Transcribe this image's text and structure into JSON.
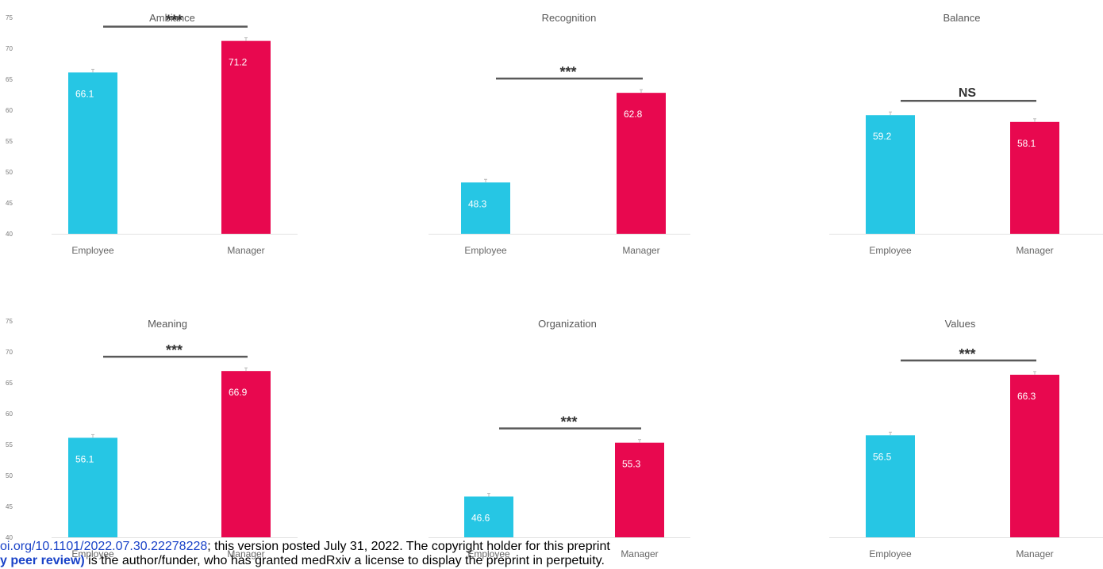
{
  "chart_data": [
    {
      "type": "bar",
      "title": "Ambiance",
      "categories": [
        "Employee",
        "Manager"
      ],
      "values": [
        66.1,
        71.2
      ],
      "significance": "***",
      "ylim": [
        40,
        75
      ],
      "yticks": [
        75,
        70,
        65,
        60,
        55,
        50,
        45,
        40
      ],
      "show_yaxis": true,
      "colors": [
        "#26c6e4",
        "#e8084f"
      ]
    },
    {
      "type": "bar",
      "title": "Recognition",
      "categories": [
        "Employee",
        "Manager"
      ],
      "values": [
        48.3,
        62.8
      ],
      "significance": "***",
      "ylim": [
        40,
        75
      ],
      "show_yaxis": false,
      "colors": [
        "#26c6e4",
        "#e8084f"
      ]
    },
    {
      "type": "bar",
      "title": "Balance",
      "categories": [
        "Employee",
        "Manager"
      ],
      "values": [
        59.2,
        58.1
      ],
      "significance": "NS",
      "ylim": [
        40,
        75
      ],
      "show_yaxis": false,
      "colors": [
        "#26c6e4",
        "#e8084f"
      ]
    },
    {
      "type": "bar",
      "title": "Meaning",
      "categories": [
        "Employee",
        "Manager"
      ],
      "values": [
        56.1,
        66.9
      ],
      "significance": "***",
      "ylim": [
        40,
        75
      ],
      "yticks": [
        75,
        70,
        65,
        60,
        55,
        50,
        45,
        40
      ],
      "show_yaxis": true,
      "colors": [
        "#26c6e4",
        "#e8084f"
      ]
    },
    {
      "type": "bar",
      "title": "Organization",
      "categories": [
        "Employee",
        "Manager"
      ],
      "values": [
        46.6,
        55.3
      ],
      "significance": "***",
      "ylim": [
        40,
        75
      ],
      "show_yaxis": false,
      "colors": [
        "#26c6e4",
        "#e8084f"
      ]
    },
    {
      "type": "bar",
      "title": "Values",
      "categories": [
        "Employee",
        "Manager"
      ],
      "values": [
        56.5,
        66.3
      ],
      "significance": "***",
      "ylim": [
        40,
        75
      ],
      "show_yaxis": false,
      "colors": [
        "#26c6e4",
        "#e8084f"
      ]
    }
  ],
  "footer": {
    "line1_link": "oi.org/10.1101/2022.07.30.22278228",
    "line1_text": "; this version posted July 31, 2022. The copyright holder for this preprint",
    "line2_bold": "y peer review)",
    "line2_text": " is the author/funder, who has granted medRxiv a license to display the preprint in perpetuity."
  }
}
